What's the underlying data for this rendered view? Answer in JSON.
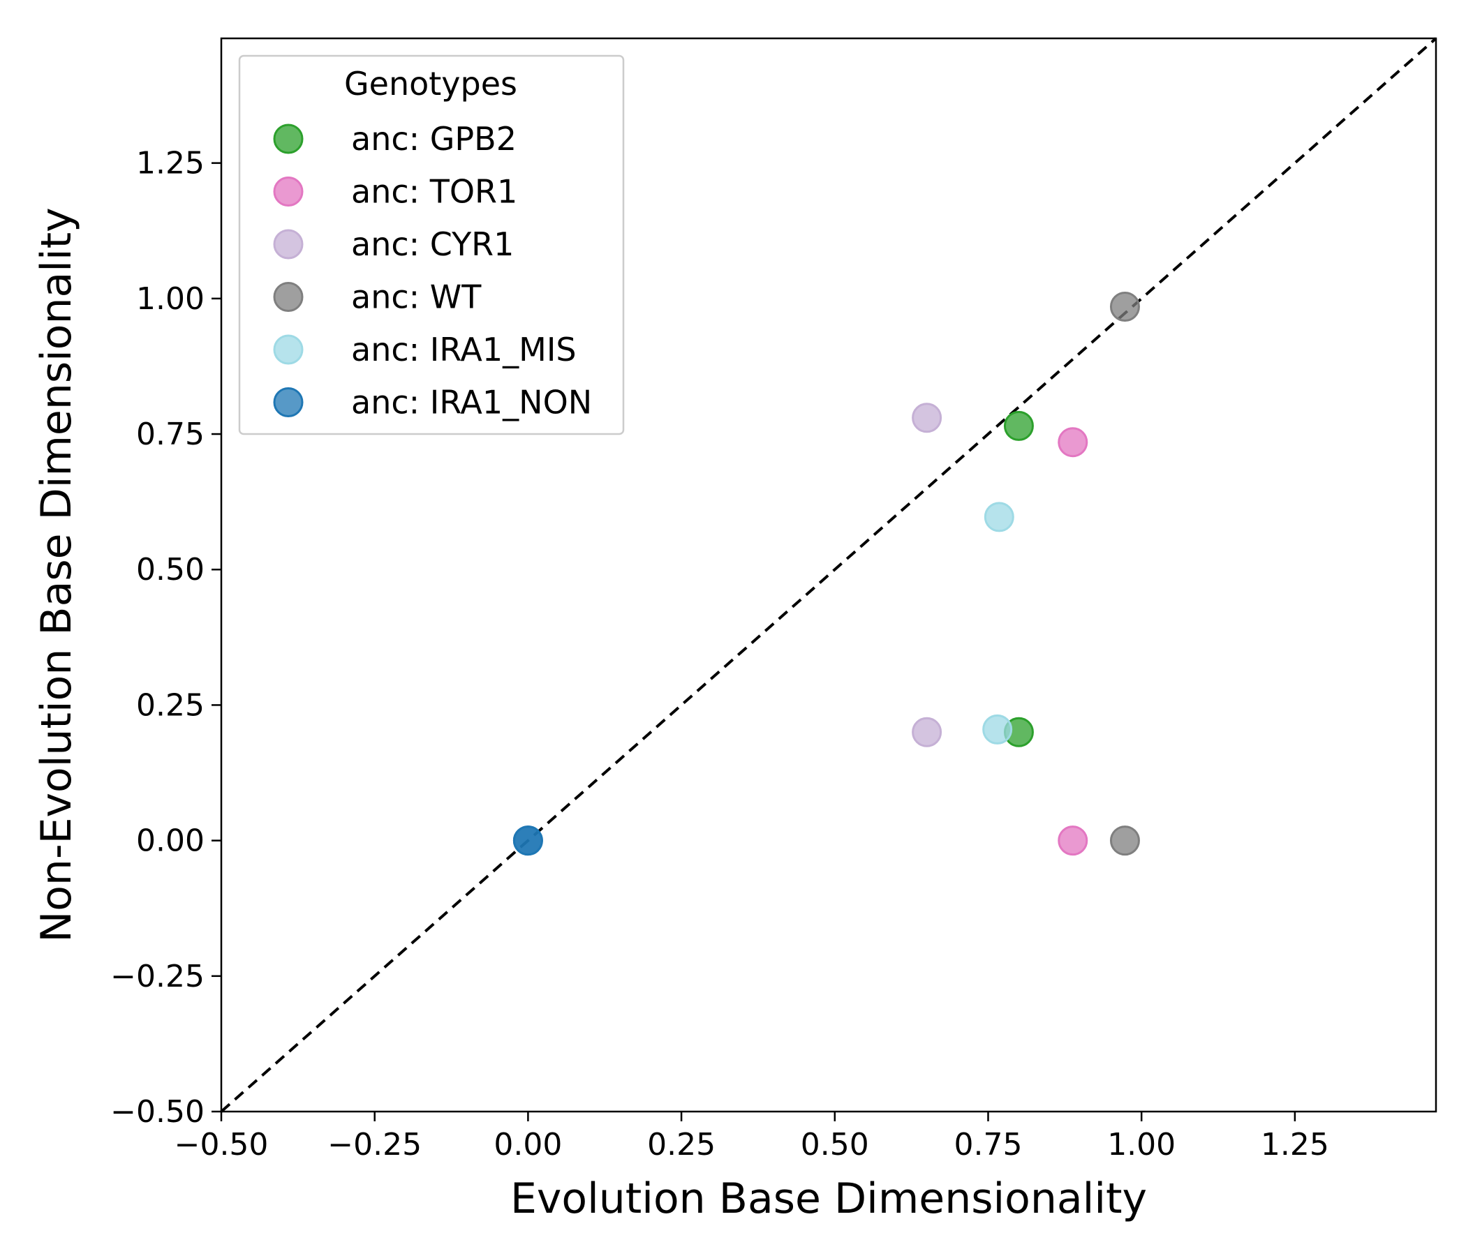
{
  "chart_data": {
    "type": "scatter",
    "xlabel": "Evolution Base Dimensionality",
    "ylabel": "Non-Evolution Base Dimensionality",
    "xlim": [
      -0.5,
      1.48
    ],
    "ylim": [
      -0.5,
      1.48
    ],
    "x_ticks": [
      -0.5,
      -0.25,
      0.0,
      0.25,
      0.5,
      0.75,
      1.0,
      1.25
    ],
    "y_ticks": [
      -0.5,
      -0.25,
      0.0,
      0.25,
      0.5,
      0.75,
      1.0,
      1.25
    ],
    "x_tick_labels": [
      "−0.50",
      "−0.25",
      "0.00",
      "0.25",
      "0.50",
      "0.75",
      "1.00",
      "1.25"
    ],
    "y_tick_labels": [
      "−0.50",
      "−0.25",
      "0.00",
      "0.25",
      "0.50",
      "0.75",
      "1.00",
      "1.25"
    ],
    "reference_line": {
      "style": "dashed",
      "color": "#000000",
      "slope": 1,
      "intercept": 0
    },
    "grid": false,
    "legend": {
      "title": "Genotypes",
      "position": "top-left"
    },
    "series": [
      {
        "name": "anc: GPB2",
        "color": "#2ca02c",
        "points": [
          [
            0.8,
            0.765
          ],
          [
            0.8,
            0.2
          ]
        ]
      },
      {
        "name": "anc: TOR1",
        "color": "#e377c2",
        "points": [
          [
            0.888,
            0.735
          ],
          [
            0.888,
            0.0
          ]
        ]
      },
      {
        "name": "anc: CYR1",
        "color": "#c5b0d5",
        "points": [
          [
            0.65,
            0.78
          ],
          [
            0.65,
            0.2
          ]
        ]
      },
      {
        "name": "anc: WT",
        "color": "#7f7f7f",
        "points": [
          [
            0.973,
            0.985
          ],
          [
            0.973,
            0.0
          ]
        ]
      },
      {
        "name": "anc: IRA1_MIS",
        "color": "#9edae5",
        "points": [
          [
            0.768,
            0.597
          ],
          [
            0.765,
            0.205
          ]
        ]
      },
      {
        "name": "anc: IRA1_NON",
        "color": "#1f77b4",
        "points": [
          [
            0.0,
            0.0
          ],
          [
            0.0,
            0.0
          ]
        ]
      }
    ]
  }
}
